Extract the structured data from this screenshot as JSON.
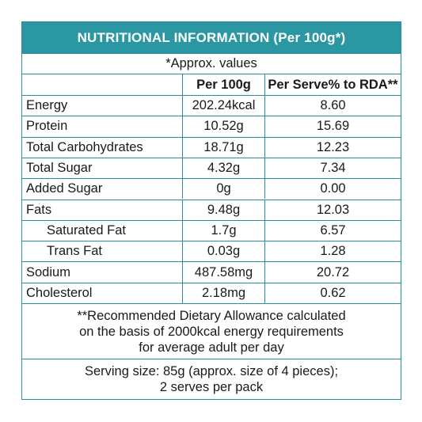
{
  "title": "NUTRITIONAL INFORMATION (Per 100g*)",
  "approx_note": "*Approx. values",
  "columns": [
    "",
    "Per 100g",
    "Per Serve% to RDA**"
  ],
  "rows": [
    {
      "name": "Energy",
      "per100": "202.24kcal",
      "rda": "8.60"
    },
    {
      "name": "Protein",
      "per100": "10.52g",
      "rda": "15.69"
    },
    {
      "name": "Total Carbohydrates",
      "per100": "18.71g",
      "rda": "12.23"
    },
    {
      "name": "Total Sugar",
      "per100": "4.32g",
      "rda": "7.34"
    },
    {
      "name": "Added Sugar",
      "per100": "0g",
      "rda": "0.00"
    },
    {
      "name": "Fats",
      "per100": "9.48g",
      "rda": "12.03"
    },
    {
      "name": "Saturated Fat",
      "per100": "1.7g",
      "rda": "6.57"
    },
    {
      "name": "Trans Fat",
      "per100": "0.03g",
      "rda": "1.28"
    },
    {
      "name": "Sodium",
      "per100": "487.58mg",
      "rda": "20.72"
    },
    {
      "name": "Cholesterol",
      "per100": "2.18mg",
      "rda": "0.62"
    }
  ],
  "rda_note": [
    "**Recommended Dietary Allowance calculated",
    "on the basis of 2000kcal energy requirements",
    "for average adult per day"
  ],
  "serving_note": [
    "Serving size: 85g (approx. size of 4 pieces);",
    "2 serves per pack"
  ],
  "colors": {
    "header_bg": "#2a97a3",
    "border": "#2a8f99"
  }
}
